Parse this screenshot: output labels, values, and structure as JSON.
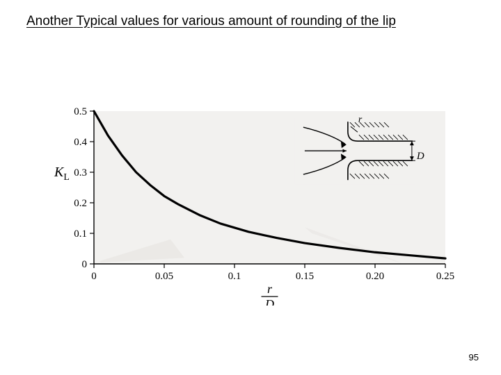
{
  "title_text": "Another Typical values for various amount of rounding of the lip",
  "page_number": "95",
  "chart": {
    "type": "line",
    "background_color": "#ffffff",
    "plot_bg_color": "#f2f1ef",
    "axis_color": "#000000",
    "axis_width": 1.4,
    "curve_color": "#000000",
    "curve_width": 3.2,
    "tick_len": 6,
    "tick_font_size": 15,
    "tick_font_family": "Times New Roman, serif",
    "label_font_size": 18,
    "ylabel": "K",
    "ylabel_sub": "L",
    "xlabel_top": "r",
    "xlabel_bot": "D",
    "xlim": [
      0,
      0.25
    ],
    "ylim": [
      0,
      0.5
    ],
    "xticks": [
      {
        "v": 0.0,
        "label": "0"
      },
      {
        "v": 0.05,
        "label": "0.05"
      },
      {
        "v": 0.1,
        "label": "0.1"
      },
      {
        "v": 0.15,
        "label": "0.15"
      },
      {
        "v": 0.2,
        "label": "0.20"
      },
      {
        "v": 0.25,
        "label": "0.25"
      }
    ],
    "yticks": [
      {
        "v": 0.0,
        "label": "0"
      },
      {
        "v": 0.1,
        "label": "0.1"
      },
      {
        "v": 0.2,
        "label": "0.2"
      },
      {
        "v": 0.3,
        "label": "0.3"
      },
      {
        "v": 0.4,
        "label": "0.4"
      },
      {
        "v": 0.5,
        "label": "0.5"
      }
    ],
    "curve_points": [
      {
        "x": 0.0,
        "y": 0.5
      },
      {
        "x": 0.01,
        "y": 0.42
      },
      {
        "x": 0.02,
        "y": 0.355
      },
      {
        "x": 0.03,
        "y": 0.3
      },
      {
        "x": 0.04,
        "y": 0.258
      },
      {
        "x": 0.05,
        "y": 0.222
      },
      {
        "x": 0.06,
        "y": 0.195
      },
      {
        "x": 0.075,
        "y": 0.16
      },
      {
        "x": 0.09,
        "y": 0.132
      },
      {
        "x": 0.11,
        "y": 0.105
      },
      {
        "x": 0.13,
        "y": 0.085
      },
      {
        "x": 0.15,
        "y": 0.068
      },
      {
        "x": 0.175,
        "y": 0.052
      },
      {
        "x": 0.2,
        "y": 0.038
      },
      {
        "x": 0.225,
        "y": 0.028
      },
      {
        "x": 0.25,
        "y": 0.018
      }
    ],
    "inset": {
      "r_label": "r",
      "d_label": "D",
      "hatch_color": "#000000",
      "line_color": "#000000",
      "line_width": 1.6,
      "arrow_color": "#000000"
    },
    "artifacts": {
      "shadow_color": "#e3e1de"
    }
  }
}
